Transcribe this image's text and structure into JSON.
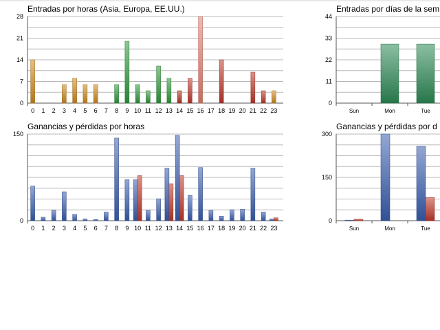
{
  "chart_data": [
    {
      "id": "entries-hours",
      "type": "bar",
      "title": "Entradas por horas (Asia, Europa, EE.UU.)",
      "categories": [
        "0",
        "1",
        "2",
        "3",
        "4",
        "5",
        "6",
        "7",
        "8",
        "9",
        "10",
        "11",
        "12",
        "13",
        "14",
        "15",
        "16",
        "17",
        "18",
        "19",
        "20",
        "21",
        "22",
        "23"
      ],
      "values": [
        14,
        0,
        0,
        6,
        8,
        6,
        6,
        0,
        6,
        20,
        6,
        4,
        12,
        8,
        4,
        8,
        28,
        0,
        14,
        0,
        0,
        10,
        4,
        4
      ],
      "bar_colors": [
        "#d08a1e",
        "#d08a1e",
        "#d08a1e",
        "#d08a1e",
        "#d08a1e",
        "#d08a1e",
        "#d08a1e",
        "#2e9a3a",
        "#2e9a3a",
        "#2e9a3a",
        "#2e9a3a",
        "#2e9a3a",
        "#2e9a3a",
        "#2e9a3a",
        "#b8321f",
        "#c0392b",
        "#e57f6f",
        "#c0392b",
        "#c0392b",
        "#c0392b",
        "#c0392b",
        "#c0392b",
        "#c0392b",
        "#d08a1e"
      ],
      "yticks": [
        0,
        7,
        14,
        21,
        28
      ],
      "ylim": [
        0,
        28
      ],
      "xlabel": "",
      "ylabel": ""
    },
    {
      "id": "entries-days",
      "type": "bar",
      "title": "Entradas por días de la sem",
      "categories": [
        "Sun",
        "Mon",
        "Tue"
      ],
      "values": [
        0,
        30,
        30
      ],
      "bar_colors": [
        "#2e8b57",
        "#2e8b57",
        "#2e8b57"
      ],
      "yticks": [
        0,
        11,
        22,
        33,
        44
      ],
      "ylim": [
        0,
        44
      ],
      "xlabel": "",
      "ylabel": ""
    },
    {
      "id": "pnl-hours",
      "type": "bar",
      "title": "Ganancias y pérdidas por horas",
      "categories": [
        "0",
        "1",
        "2",
        "3",
        "4",
        "5",
        "6",
        "7",
        "8",
        "9",
        "10",
        "11",
        "12",
        "13",
        "14",
        "15",
        "16",
        "17",
        "18",
        "19",
        "20",
        "21",
        "22",
        "23"
      ],
      "series": [
        {
          "color": "#3a5fb0",
          "values": [
            60,
            6,
            18,
            50,
            11,
            3,
            2,
            15,
            143,
            71,
            71,
            18,
            38,
            91,
            148,
            44,
            92,
            18,
            8,
            19,
            20,
            91,
            15,
            3
          ]
        },
        {
          "color": "#c0392b",
          "values": [
            0,
            0,
            0,
            0,
            0,
            0,
            0,
            0,
            0,
            0,
            78,
            0,
            0,
            64,
            78,
            0,
            0,
            0,
            0,
            0,
            0,
            0,
            0,
            5
          ]
        }
      ],
      "yticks": [
        0,
        150
      ],
      "ylim": [
        0,
        150
      ],
      "xlabel": "",
      "ylabel": ""
    },
    {
      "id": "pnl-days",
      "type": "bar",
      "title": "Ganancias y pérdidas por d",
      "categories": [
        "Sun",
        "Mon",
        "Tue"
      ],
      "series": [
        {
          "color": "#3a5fb0",
          "values": [
            2,
            300,
            258
          ]
        },
        {
          "color": "#c0392b",
          "values": [
            5,
            0,
            80
          ]
        }
      ],
      "yticks": [
        0,
        150,
        300
      ],
      "ylim": [
        0,
        300
      ],
      "xlabel": "",
      "ylabel": ""
    }
  ]
}
